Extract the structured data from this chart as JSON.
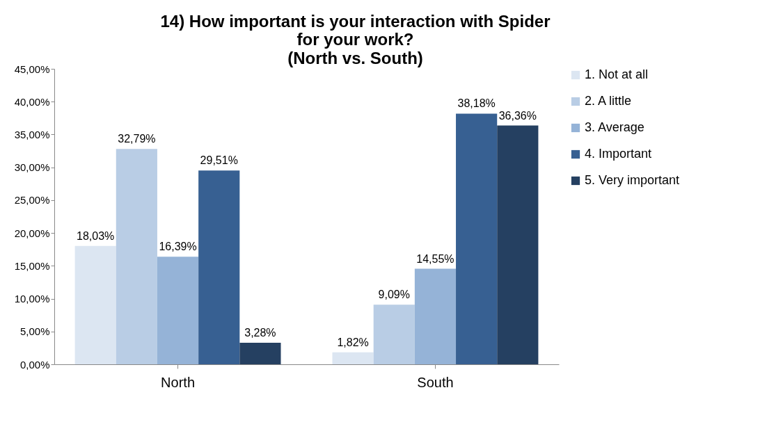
{
  "chart_data": {
    "type": "bar",
    "title": "14) How important is your interaction with Spider for your work?",
    "subtitle": "(North vs. South)",
    "categories": [
      "North",
      "South"
    ],
    "series": [
      {
        "name": "1. Not at all",
        "color": "#dce6f2",
        "values": [
          18.03,
          1.82
        ],
        "value_labels": [
          "18,03%",
          "1,82%"
        ]
      },
      {
        "name": "2. A little",
        "color": "#b9cde5",
        "values": [
          32.79,
          9.09
        ],
        "value_labels": [
          "32,79%",
          "9,09%"
        ]
      },
      {
        "name": "3. Average",
        "color": "#95b3d7",
        "values": [
          16.39,
          14.55
        ],
        "value_labels": [
          "16,39%",
          "14,55%"
        ]
      },
      {
        "name": "4. Important",
        "color": "#376092",
        "values": [
          29.51,
          38.18
        ],
        "value_labels": [
          "29,51%",
          "38,18%"
        ]
      },
      {
        "name": "5. Very important",
        "color": "#254061",
        "values": [
          3.28,
          36.36
        ],
        "value_labels": [
          "3,28%",
          "36,36%"
        ]
      }
    ],
    "ylim": [
      0,
      45
    ],
    "yticks": [
      {
        "value": 0,
        "label": "0,00%"
      },
      {
        "value": 5,
        "label": "5,00%"
      },
      {
        "value": 10,
        "label": "10,00%"
      },
      {
        "value": 15,
        "label": "15,00%"
      },
      {
        "value": 20,
        "label": "20,00%"
      },
      {
        "value": 25,
        "label": "25,00%"
      },
      {
        "value": 30,
        "label": "30,00%"
      },
      {
        "value": 35,
        "label": "35,00%"
      },
      {
        "value": 40,
        "label": "40,00%"
      },
      {
        "value": 45,
        "label": "45,00%"
      }
    ],
    "grid": false,
    "legend": "right"
  }
}
